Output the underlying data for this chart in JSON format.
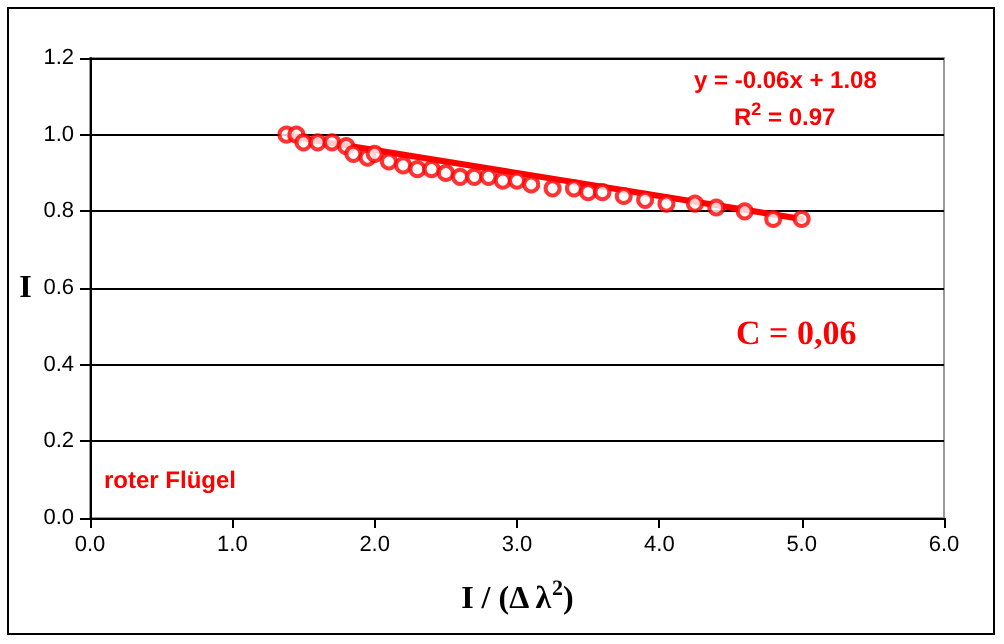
{
  "chart_data": {
    "type": "scatter",
    "xlabel": "I / (Δ λ$^{2}$)",
    "ylabel": "I",
    "xlim": [
      0,
      6
    ],
    "xticks": [
      {
        "value": 0,
        "label": "0.0"
      },
      {
        "value": 1,
        "label": "1.0"
      },
      {
        "value": 2,
        "label": "2.0"
      },
      {
        "value": 3,
        "label": "3.0"
      },
      {
        "value": 4,
        "label": "4.0"
      },
      {
        "value": 5,
        "label": "5.0"
      },
      {
        "value": 6,
        "label": "6.0"
      }
    ],
    "ylim": [
      0,
      1.2
    ],
    "yticks": [
      {
        "value": 0,
        "label": "0.0"
      },
      {
        "value": 0.2,
        "label": "0.2"
      },
      {
        "value": 0.4,
        "label": "0.4"
      },
      {
        "value": 0.6,
        "label": "0.6"
      },
      {
        "value": 0.8,
        "label": "0.8"
      },
      {
        "value": 1,
        "label": "1.0"
      },
      {
        "value": 1.2,
        "label": "1.2"
      }
    ],
    "grid": "y",
    "series": [
      {
        "color": "#ff0000",
        "marker": "circle",
        "x": [
          1.38,
          1.45,
          1.5,
          1.6,
          1.7,
          1.8,
          1.85,
          1.95,
          2.0,
          2.1,
          2.2,
          2.3,
          2.4,
          2.5,
          2.6,
          2.7,
          2.8,
          2.9,
          3.0,
          3.1,
          3.25,
          3.4,
          3.5,
          3.6,
          3.75,
          3.9,
          4.05,
          4.25,
          4.4,
          4.6,
          4.8,
          5.0
        ],
        "values": [
          1.0,
          1.0,
          0.98,
          0.98,
          0.98,
          0.97,
          0.95,
          0.94,
          0.95,
          0.93,
          0.92,
          0.91,
          0.91,
          0.9,
          0.89,
          0.89,
          0.89,
          0.88,
          0.88,
          0.87,
          0.86,
          0.86,
          0.85,
          0.85,
          0.84,
          0.83,
          0.82,
          0.82,
          0.81,
          0.8,
          0.78,
          0.78
        ]
      },
      {
        "type": "line",
        "color": "#ff0000",
        "line_style": "solid",
        "x": [
          1.4,
          5.0
        ],
        "values": [
          0.996,
          0.78
        ]
      }
    ],
    "annotations": [
      "y = -0.06x + 1.08",
      "R$^{2}$ = 0.97",
      "C = 0,06",
      "roter Flügel"
    ]
  }
}
